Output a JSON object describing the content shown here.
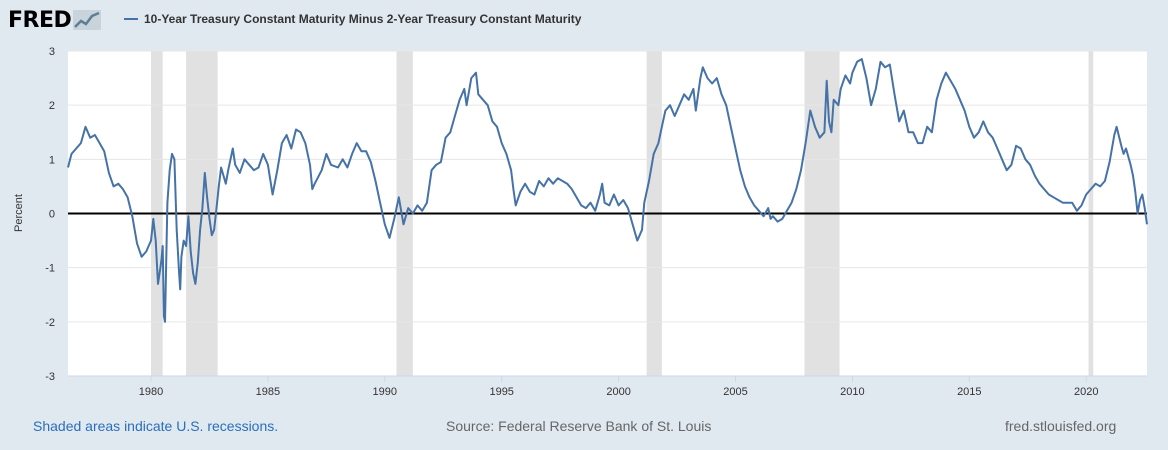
{
  "logo": {
    "text": "FRED"
  },
  "legend": {
    "series_name": "10-Year Treasury Constant Maturity Minus 2-Year Treasury Constant Maturity",
    "color": "#4572a7"
  },
  "footer": {
    "recession_note": "Shaded areas indicate U.S. recessions.",
    "source": "Source: Federal Reserve Bank of St. Louis",
    "site": "fred.stlouisfed.org"
  },
  "chart_data": {
    "type": "line",
    "title": "10-Year Treasury Constant Maturity Minus 2-Year Treasury Constant Maturity",
    "ylabel": "Percent",
    "xlabel": "",
    "xlim": [
      1976.45,
      2022.6
    ],
    "ylim": [
      -3,
      3
    ],
    "x_ticks": [
      1980,
      1985,
      1990,
      1995,
      2000,
      2005,
      2010,
      2015,
      2020
    ],
    "y_ticks": [
      -3,
      -2,
      -1,
      0,
      1,
      2,
      3
    ],
    "grid": true,
    "legend_position": "top",
    "recessions": [
      [
        1980.0,
        1980.5
      ],
      [
        1981.5,
        1982.85
      ],
      [
        1990.5,
        1991.2
      ],
      [
        2001.2,
        2001.85
      ],
      [
        2007.95,
        2009.45
      ],
      [
        2020.1,
        2020.3
      ]
    ],
    "series": [
      {
        "name": "10-Year Treasury Constant Maturity Minus 2-Year Treasury Constant Maturity",
        "color": "#4572a7",
        "points": [
          [
            1976.45,
            0.85
          ],
          [
            1976.6,
            1.1
          ],
          [
            1976.8,
            1.2
          ],
          [
            1977.0,
            1.3
          ],
          [
            1977.2,
            1.6
          ],
          [
            1977.4,
            1.4
          ],
          [
            1977.6,
            1.45
          ],
          [
            1977.8,
            1.3
          ],
          [
            1978.0,
            1.15
          ],
          [
            1978.2,
            0.75
          ],
          [
            1978.4,
            0.5
          ],
          [
            1978.6,
            0.55
          ],
          [
            1978.8,
            0.45
          ],
          [
            1979.0,
            0.3
          ],
          [
            1979.2,
            -0.05
          ],
          [
            1979.4,
            -0.55
          ],
          [
            1979.6,
            -0.8
          ],
          [
            1979.8,
            -0.7
          ],
          [
            1980.0,
            -0.5
          ],
          [
            1980.05,
            -0.3
          ],
          [
            1980.1,
            -0.1
          ],
          [
            1980.2,
            -0.5
          ],
          [
            1980.3,
            -1.3
          ],
          [
            1980.4,
            -1.0
          ],
          [
            1980.45,
            -0.85
          ],
          [
            1980.5,
            -0.6
          ],
          [
            1980.55,
            -1.9
          ],
          [
            1980.6,
            -2.0
          ],
          [
            1980.7,
            0.2
          ],
          [
            1980.8,
            0.8
          ],
          [
            1980.9,
            1.1
          ],
          [
            1981.0,
            1.0
          ],
          [
            1981.1,
            -0.3
          ],
          [
            1981.2,
            -1.1
          ],
          [
            1981.25,
            -1.4
          ],
          [
            1981.3,
            -0.8
          ],
          [
            1981.4,
            -0.5
          ],
          [
            1981.5,
            -0.6
          ],
          [
            1981.6,
            -0.05
          ],
          [
            1981.7,
            -0.7
          ],
          [
            1981.8,
            -1.1
          ],
          [
            1981.9,
            -1.3
          ],
          [
            1982.0,
            -0.9
          ],
          [
            1982.1,
            -0.3
          ],
          [
            1982.2,
            0.1
          ],
          [
            1982.3,
            0.75
          ],
          [
            1982.4,
            0.3
          ],
          [
            1982.5,
            -0.1
          ],
          [
            1982.6,
            -0.4
          ],
          [
            1982.7,
            -0.3
          ],
          [
            1982.8,
            0.1
          ],
          [
            1982.9,
            0.5
          ],
          [
            1983.0,
            0.85
          ],
          [
            1983.2,
            0.55
          ],
          [
            1983.3,
            0.8
          ],
          [
            1983.5,
            1.2
          ],
          [
            1983.6,
            0.9
          ],
          [
            1983.8,
            0.75
          ],
          [
            1984.0,
            1.0
          ],
          [
            1984.2,
            0.9
          ],
          [
            1984.4,
            0.8
          ],
          [
            1984.6,
            0.85
          ],
          [
            1984.8,
            1.1
          ],
          [
            1985.0,
            0.9
          ],
          [
            1985.2,
            0.35
          ],
          [
            1985.4,
            0.8
          ],
          [
            1985.6,
            1.3
          ],
          [
            1985.8,
            1.45
          ],
          [
            1986.0,
            1.2
          ],
          [
            1986.2,
            1.55
          ],
          [
            1986.4,
            1.5
          ],
          [
            1986.6,
            1.3
          ],
          [
            1986.8,
            0.9
          ],
          [
            1986.9,
            0.45
          ],
          [
            1987.0,
            0.55
          ],
          [
            1987.3,
            0.8
          ],
          [
            1987.5,
            1.1
          ],
          [
            1987.7,
            0.9
          ],
          [
            1988.0,
            0.85
          ],
          [
            1988.2,
            1.0
          ],
          [
            1988.4,
            0.85
          ],
          [
            1988.6,
            1.1
          ],
          [
            1988.8,
            1.3
          ],
          [
            1989.0,
            1.15
          ],
          [
            1989.2,
            1.15
          ],
          [
            1989.4,
            0.95
          ],
          [
            1989.6,
            0.6
          ],
          [
            1989.8,
            0.2
          ],
          [
            1990.0,
            -0.2
          ],
          [
            1990.2,
            -0.45
          ],
          [
            1990.4,
            -0.1
          ],
          [
            1990.6,
            0.3
          ],
          [
            1990.8,
            -0.2
          ],
          [
            1991.0,
            0.1
          ],
          [
            1991.2,
            0.0
          ],
          [
            1991.4,
            0.15
          ],
          [
            1991.6,
            0.05
          ],
          [
            1991.8,
            0.2
          ],
          [
            1992.0,
            0.8
          ],
          [
            1992.2,
            0.9
          ],
          [
            1992.4,
            0.95
          ],
          [
            1992.6,
            1.4
          ],
          [
            1992.8,
            1.5
          ],
          [
            1993.0,
            1.8
          ],
          [
            1993.2,
            2.1
          ],
          [
            1993.4,
            2.3
          ],
          [
            1993.5,
            2.0
          ],
          [
            1993.7,
            2.5
          ],
          [
            1993.9,
            2.6
          ],
          [
            1994.0,
            2.2
          ],
          [
            1994.2,
            2.1
          ],
          [
            1994.4,
            2.0
          ],
          [
            1994.6,
            1.7
          ],
          [
            1994.8,
            1.6
          ],
          [
            1995.0,
            1.3
          ],
          [
            1995.2,
            1.1
          ],
          [
            1995.4,
            0.8
          ],
          [
            1995.5,
            0.45
          ],
          [
            1995.6,
            0.15
          ],
          [
            1995.8,
            0.4
          ],
          [
            1996.0,
            0.55
          ],
          [
            1996.2,
            0.4
          ],
          [
            1996.4,
            0.35
          ],
          [
            1996.6,
            0.6
          ],
          [
            1996.8,
            0.5
          ],
          [
            1997.0,
            0.65
          ],
          [
            1997.2,
            0.55
          ],
          [
            1997.4,
            0.65
          ],
          [
            1997.6,
            0.6
          ],
          [
            1997.8,
            0.55
          ],
          [
            1998.0,
            0.45
          ],
          [
            1998.2,
            0.3
          ],
          [
            1998.4,
            0.15
          ],
          [
            1998.6,
            0.1
          ],
          [
            1998.8,
            0.2
          ],
          [
            1999.0,
            0.05
          ],
          [
            1999.2,
            0.35
          ],
          [
            1999.3,
            0.55
          ],
          [
            1999.4,
            0.2
          ],
          [
            1999.6,
            0.15
          ],
          [
            1999.8,
            0.35
          ],
          [
            2000.0,
            0.15
          ],
          [
            2000.2,
            0.25
          ],
          [
            2000.4,
            0.1
          ],
          [
            2000.6,
            -0.2
          ],
          [
            2000.8,
            -0.5
          ],
          [
            2001.0,
            -0.3
          ],
          [
            2001.1,
            0.2
          ],
          [
            2001.3,
            0.6
          ],
          [
            2001.5,
            1.1
          ],
          [
            2001.7,
            1.3
          ],
          [
            2001.9,
            1.7
          ],
          [
            2002.0,
            1.9
          ],
          [
            2002.2,
            2.0
          ],
          [
            2002.4,
            1.8
          ],
          [
            2002.6,
            2.0
          ],
          [
            2002.8,
            2.2
          ],
          [
            2003.0,
            2.1
          ],
          [
            2003.2,
            2.3
          ],
          [
            2003.3,
            1.9
          ],
          [
            2003.5,
            2.5
          ],
          [
            2003.6,
            2.7
          ],
          [
            2003.8,
            2.5
          ],
          [
            2004.0,
            2.4
          ],
          [
            2004.2,
            2.5
          ],
          [
            2004.4,
            2.2
          ],
          [
            2004.6,
            2.0
          ],
          [
            2004.8,
            1.6
          ],
          [
            2005.0,
            1.2
          ],
          [
            2005.2,
            0.8
          ],
          [
            2005.4,
            0.5
          ],
          [
            2005.6,
            0.3
          ],
          [
            2005.8,
            0.15
          ],
          [
            2006.0,
            0.05
          ],
          [
            2006.2,
            -0.05
          ],
          [
            2006.4,
            0.1
          ],
          [
            2006.5,
            -0.1
          ],
          [
            2006.6,
            -0.05
          ],
          [
            2006.8,
            -0.15
          ],
          [
            2007.0,
            -0.1
          ],
          [
            2007.2,
            0.05
          ],
          [
            2007.4,
            0.2
          ],
          [
            2007.6,
            0.45
          ],
          [
            2007.8,
            0.8
          ],
          [
            2008.0,
            1.3
          ],
          [
            2008.2,
            1.9
          ],
          [
            2008.4,
            1.6
          ],
          [
            2008.6,
            1.4
          ],
          [
            2008.8,
            1.5
          ],
          [
            2008.9,
            2.45
          ],
          [
            2009.0,
            1.7
          ],
          [
            2009.1,
            1.5
          ],
          [
            2009.2,
            2.1
          ],
          [
            2009.4,
            2.0
          ],
          [
            2009.5,
            2.3
          ],
          [
            2009.7,
            2.55
          ],
          [
            2009.9,
            2.4
          ],
          [
            2010.0,
            2.6
          ],
          [
            2010.2,
            2.8
          ],
          [
            2010.4,
            2.85
          ],
          [
            2010.6,
            2.5
          ],
          [
            2010.8,
            2.0
          ],
          [
            2011.0,
            2.3
          ],
          [
            2011.2,
            2.8
          ],
          [
            2011.4,
            2.7
          ],
          [
            2011.6,
            2.75
          ],
          [
            2011.8,
            2.2
          ],
          [
            2012.0,
            1.7
          ],
          [
            2012.2,
            1.9
          ],
          [
            2012.4,
            1.5
          ],
          [
            2012.6,
            1.5
          ],
          [
            2012.8,
            1.3
          ],
          [
            2013.0,
            1.3
          ],
          [
            2013.2,
            1.6
          ],
          [
            2013.4,
            1.5
          ],
          [
            2013.6,
            2.1
          ],
          [
            2013.8,
            2.4
          ],
          [
            2014.0,
            2.6
          ],
          [
            2014.2,
            2.45
          ],
          [
            2014.4,
            2.3
          ],
          [
            2014.6,
            2.1
          ],
          [
            2014.8,
            1.9
          ],
          [
            2015.0,
            1.6
          ],
          [
            2015.2,
            1.4
          ],
          [
            2015.4,
            1.5
          ],
          [
            2015.6,
            1.7
          ],
          [
            2015.8,
            1.5
          ],
          [
            2016.0,
            1.4
          ],
          [
            2016.2,
            1.2
          ],
          [
            2016.4,
            1.0
          ],
          [
            2016.6,
            0.8
          ],
          [
            2016.8,
            0.9
          ],
          [
            2017.0,
            1.25
          ],
          [
            2017.2,
            1.2
          ],
          [
            2017.4,
            1.0
          ],
          [
            2017.6,
            0.9
          ],
          [
            2017.8,
            0.7
          ],
          [
            2018.0,
            0.55
          ],
          [
            2018.2,
            0.45
          ],
          [
            2018.4,
            0.35
          ],
          [
            2018.6,
            0.3
          ],
          [
            2018.8,
            0.25
          ],
          [
            2019.0,
            0.2
          ],
          [
            2019.2,
            0.2
          ],
          [
            2019.4,
            0.2
          ],
          [
            2019.6,
            0.05
          ],
          [
            2019.8,
            0.15
          ],
          [
            2020.0,
            0.35
          ],
          [
            2020.2,
            0.45
          ],
          [
            2020.4,
            0.55
          ],
          [
            2020.6,
            0.5
          ],
          [
            2020.8,
            0.6
          ],
          [
            2021.0,
            0.95
          ],
          [
            2021.2,
            1.45
          ],
          [
            2021.3,
            1.6
          ],
          [
            2021.5,
            1.25
          ],
          [
            2021.6,
            1.1
          ],
          [
            2021.7,
            1.2
          ],
          [
            2021.9,
            0.9
          ],
          [
            2022.0,
            0.7
          ],
          [
            2022.1,
            0.4
          ],
          [
            2022.2,
            0.0
          ],
          [
            2022.3,
            0.25
          ],
          [
            2022.4,
            0.35
          ],
          [
            2022.5,
            0.1
          ],
          [
            2022.6,
            -0.2
          ]
        ]
      }
    ]
  }
}
